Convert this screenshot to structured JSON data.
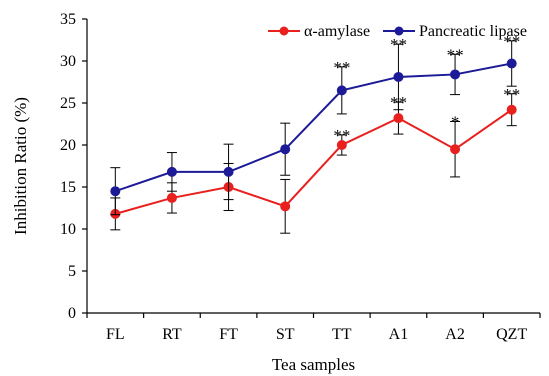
{
  "chart_data": {
    "type": "line",
    "xlabel": "Tea samples",
    "ylabel": "Inhibition Ratio (%)",
    "categories": [
      "FL",
      "RT",
      "FT",
      "ST",
      "TT",
      "A1",
      "A2",
      "QZT"
    ],
    "ylim": [
      0,
      35
    ],
    "yticks": [
      0,
      5,
      10,
      15,
      20,
      25,
      30,
      35
    ],
    "grid": false,
    "legend_position": "top-right",
    "series": [
      {
        "name": "α-amylase",
        "color": "#e8201e",
        "values": [
          11.8,
          13.7,
          15.0,
          12.7,
          20.0,
          23.2,
          19.5,
          24.2
        ],
        "errors": [
          1.9,
          1.8,
          2.8,
          3.2,
          1.2,
          1.9,
          3.3,
          1.9
        ],
        "significance": [
          "",
          "",
          "",
          "",
          "**",
          "**",
          "*",
          "**"
        ]
      },
      {
        "name": "Pancreatic lipase",
        "color": "#1c1a96",
        "values": [
          14.5,
          16.8,
          16.8,
          19.5,
          26.5,
          28.1,
          28.4,
          29.7
        ],
        "errors": [
          2.8,
          2.3,
          3.3,
          3.1,
          2.8,
          3.9,
          2.4,
          2.7
        ],
        "significance": [
          "",
          "",
          "",
          "",
          "**",
          "**",
          "**",
          "**"
        ]
      }
    ]
  }
}
